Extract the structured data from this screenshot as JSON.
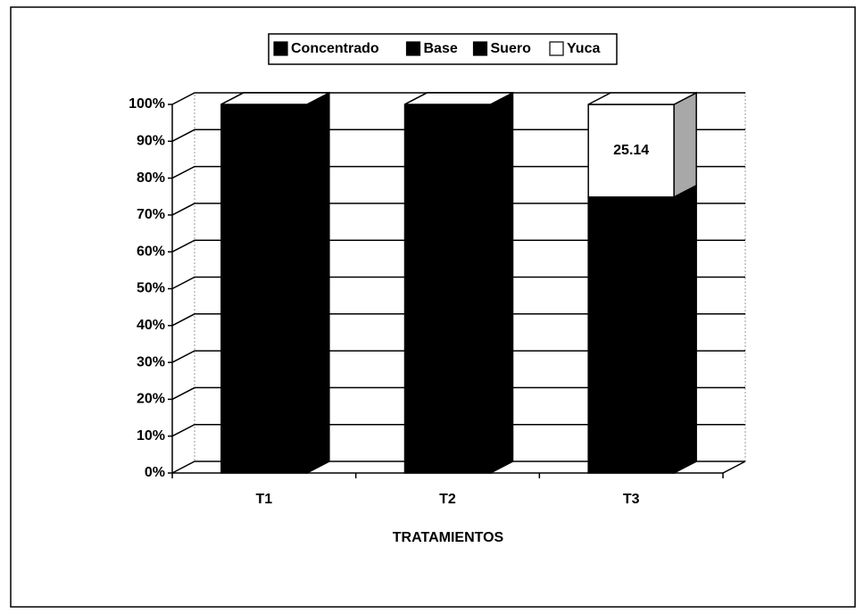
{
  "chart_data": {
    "type": "bar3d_stacked_percent",
    "categories": [
      "T1",
      "T2",
      "T3"
    ],
    "series": [
      {
        "name": "Concentrado",
        "color": "#000000",
        "values": [
          100,
          100,
          74.86
        ]
      },
      {
        "name": "Base",
        "color": "#000000",
        "values": [
          0,
          0,
          0
        ]
      },
      {
        "name": "Suero",
        "color": "#000000",
        "values": [
          0,
          0,
          0
        ]
      },
      {
        "name": "Yuca",
        "color": "#ffffff",
        "values": [
          0,
          0,
          25.14
        ]
      }
    ],
    "x_label": "TRATAMIENTOS",
    "ylim": [
      0,
      100
    ],
    "yticks": [
      {
        "value": 0,
        "label": "0%"
      },
      {
        "value": 10,
        "label": "10%"
      },
      {
        "value": 20,
        "label": "20%"
      },
      {
        "value": 30,
        "label": "30%"
      },
      {
        "value": 40,
        "label": "40%"
      },
      {
        "value": 50,
        "label": "50%"
      },
      {
        "value": 60,
        "label": "60%"
      },
      {
        "value": 70,
        "label": "70%"
      },
      {
        "value": 80,
        "label": "80%"
      },
      {
        "value": 90,
        "label": "90%"
      },
      {
        "value": 100,
        "label": "100%"
      }
    ],
    "grid": true,
    "legend": "top"
  }
}
